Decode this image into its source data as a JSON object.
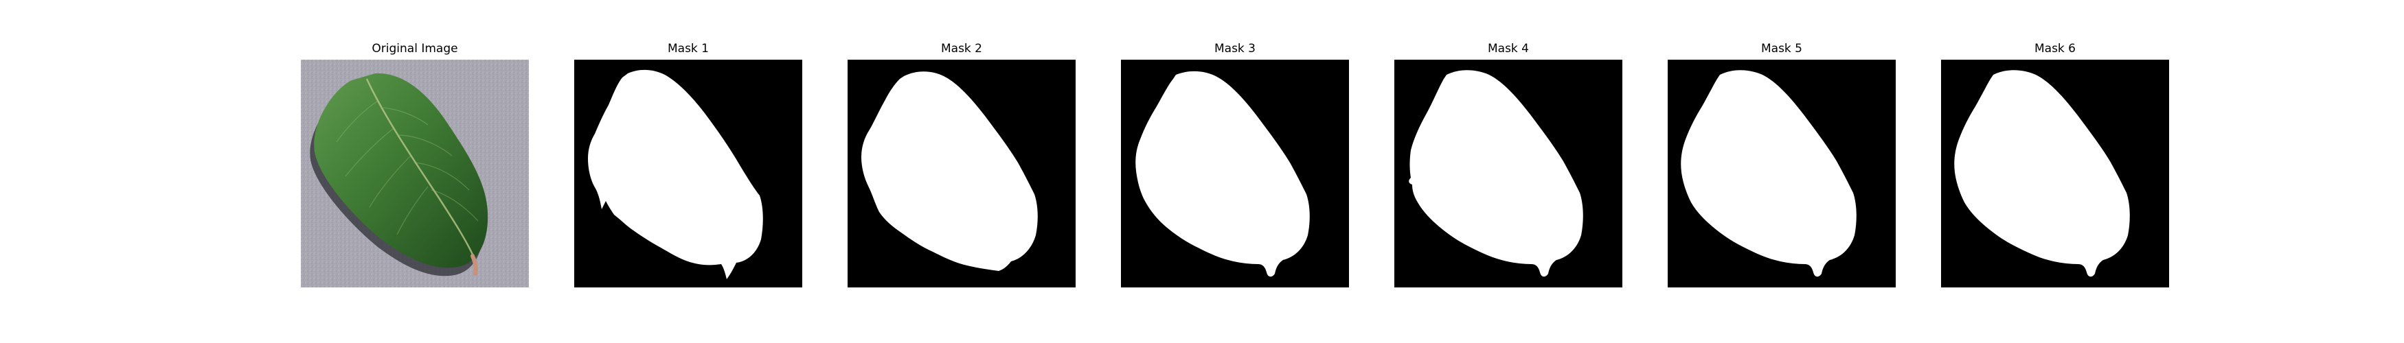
{
  "figure": {
    "panels": [
      {
        "title": "Original Image",
        "kind": "photo"
      },
      {
        "title": "Mask 1",
        "kind": "mask"
      },
      {
        "title": "Mask 2",
        "kind": "mask"
      },
      {
        "title": "Mask 3",
        "kind": "mask"
      },
      {
        "title": "Mask 4",
        "kind": "mask"
      },
      {
        "title": "Mask 5",
        "kind": "mask"
      },
      {
        "title": "Mask 6",
        "kind": "mask"
      }
    ]
  },
  "colors": {
    "background": "#ffffff",
    "mask_background": "#000000",
    "mask_foreground": "#ffffff",
    "photo_background": "#a9a7b2",
    "leaf_dark": "#1f4a1c",
    "leaf_mid": "#3f7a34",
    "leaf_light": "#5f9a4e",
    "leaf_vein": "#b9c88a",
    "stem": "#c9907a",
    "shadow": "#2d2e34"
  }
}
